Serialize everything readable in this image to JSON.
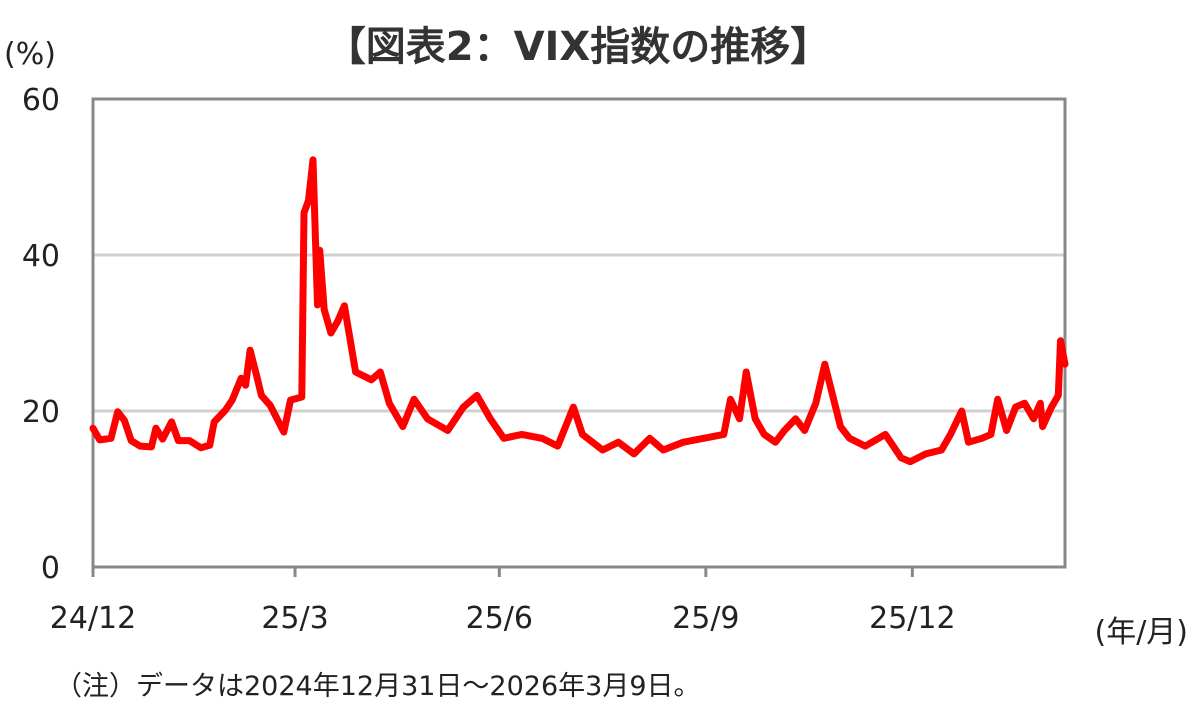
{
  "chart_data": {
    "type": "line",
    "title": "【図表2：VIX指数の推移】",
    "ylabel": "(%)",
    "xlabel": "(年/月)",
    "note": "（注）データは2024年12月31日～2026年3月9日。",
    "ylim": [
      0,
      60
    ],
    "yticks": [
      0,
      20,
      40,
      60
    ],
    "xlim": [
      "2024-12-31",
      "2026-03-09"
    ],
    "xticks": [
      {
        "date": "2024-12-31",
        "label": "24/12"
      },
      {
        "date": "2025-03-31",
        "label": "25/3"
      },
      {
        "date": "2025-06-30",
        "label": "25/6"
      },
      {
        "date": "2025-09-30",
        "label": "25/9"
      },
      {
        "date": "2025-12-31",
        "label": "25/12"
      }
    ],
    "grid": true,
    "colors": {
      "line": "#ff0000",
      "grid": "#d0d0d0",
      "frame": "#888888"
    },
    "series": [
      {
        "x": [
          "2024-12-31",
          "2025-01-03",
          "2025-01-08",
          "2025-01-11",
          "2025-01-14",
          "2025-01-17",
          "2025-01-21",
          "2025-01-26",
          "2025-01-28",
          "2025-01-31",
          "2025-02-04",
          "2025-02-07",
          "2025-02-12",
          "2025-02-17",
          "2025-02-21",
          "2025-02-23",
          "2025-02-28",
          "2025-03-03",
          "2025-03-07",
          "2025-03-09",
          "2025-03-11",
          "2025-03-14",
          "2025-03-16",
          "2025-03-20",
          "2025-03-26",
          "2025-03-29",
          "2025-04-03",
          "2025-04-04",
          "2025-04-06",
          "2025-04-08",
          "2025-04-10",
          "2025-04-11",
          "2025-04-13",
          "2025-04-16",
          "2025-04-19",
          "2025-04-22",
          "2025-04-27",
          "2025-05-04",
          "2025-05-08",
          "2025-05-12",
          "2025-05-18",
          "2025-05-23",
          "2025-05-29",
          "2025-06-07",
          "2025-06-14",
          "2025-06-20",
          "2025-06-26",
          "2025-07-02",
          "2025-07-10",
          "2025-07-19",
          "2025-07-26",
          "2025-08-02",
          "2025-08-06",
          "2025-08-15",
          "2025-08-22",
          "2025-08-29",
          "2025-09-05",
          "2025-09-11",
          "2025-09-20",
          "2025-09-29",
          "2025-10-08",
          "2025-10-11",
          "2025-10-15",
          "2025-10-18",
          "2025-10-22",
          "2025-10-26",
          "2025-10-31",
          "2025-11-04",
          "2025-11-09",
          "2025-11-13",
          "2025-11-18",
          "2025-11-22",
          "2025-11-29",
          "2025-12-03",
          "2025-12-10",
          "2025-12-19",
          "2025-12-26",
          "2025-12-30",
          "2026-01-06",
          "2026-01-13",
          "2026-01-17",
          "2026-01-22",
          "2026-01-25",
          "2026-01-31",
          "2026-02-04",
          "2026-02-07",
          "2026-02-11",
          "2026-02-15",
          "2026-02-19",
          "2026-02-23",
          "2026-02-26",
          "2026-02-27",
          "2026-03-03",
          "2026-03-06",
          "2026-03-07",
          "2026-03-09"
        ],
        "values": [
          17.8,
          16.3,
          16.5,
          19.9,
          18.8,
          16.2,
          15.5,
          15.4,
          17.8,
          16.4,
          18.6,
          16.2,
          16.2,
          15.3,
          15.6,
          18.6,
          20.1,
          21.4,
          24.2,
          23.3,
          27.8,
          24.4,
          22.0,
          20.7,
          17.3,
          21.4,
          21.8,
          45.4,
          47.0,
          52.2,
          33.6,
          40.6,
          33.0,
          30.0,
          31.5,
          33.5,
          25.0,
          24.0,
          25.0,
          21.0,
          18.0,
          21.5,
          19.0,
          17.5,
          20.5,
          22.0,
          19.0,
          16.5,
          17.0,
          16.5,
          15.5,
          20.5,
          17.0,
          15.0,
          16.0,
          14.5,
          16.5,
          15.0,
          16.0,
          16.5,
          17.0,
          21.5,
          19.0,
          25.0,
          19.0,
          17.0,
          16.0,
          17.5,
          19.0,
          17.5,
          21.0,
          26.0,
          18.0,
          16.5,
          15.5,
          17.0,
          14.0,
          13.5,
          14.5,
          15.0,
          17.0,
          20.0,
          16.0,
          16.5,
          17.0,
          21.5,
          17.5,
          20.5,
          21.0,
          19.0,
          21.0,
          18.0,
          20.5,
          22.0,
          29.0,
          26.0
        ]
      }
    ]
  }
}
